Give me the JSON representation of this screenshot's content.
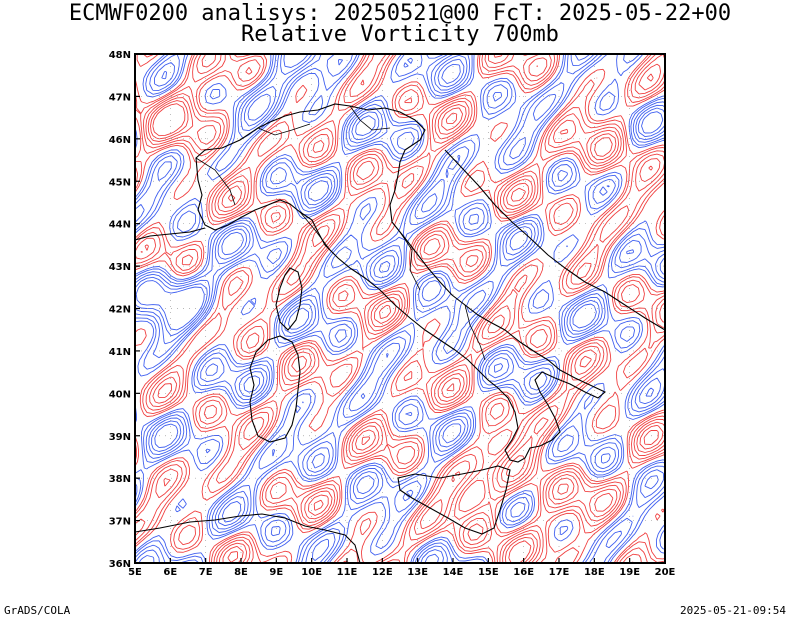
{
  "header": {
    "line1": "ECMWF0200 analisys: 20250521@00 FcT: 2025-05-22+00",
    "line2": "Relative Vorticity 700mb"
  },
  "footer": {
    "left": "GrADS/COLA",
    "right": "2025-05-21-09:54"
  },
  "map": {
    "lon_range": [
      5,
      20
    ],
    "lat_range": [
      36,
      48
    ],
    "lon_ticks": [
      "5E",
      "6E",
      "7E",
      "8E",
      "9E",
      "10E",
      "11E",
      "12E",
      "13E",
      "14E",
      "15E",
      "16E",
      "17E",
      "18E",
      "19E",
      "20E"
    ],
    "lat_ticks": [
      "36N",
      "37N",
      "38N",
      "39N",
      "40N",
      "41N",
      "42N",
      "43N",
      "44N",
      "45N",
      "46N",
      "47N",
      "48N"
    ],
    "colors": {
      "positive_contours": "#f04040",
      "negative_contours": "#4060f0",
      "coastline": "#000000",
      "grid": "#a0a0a0"
    }
  }
}
